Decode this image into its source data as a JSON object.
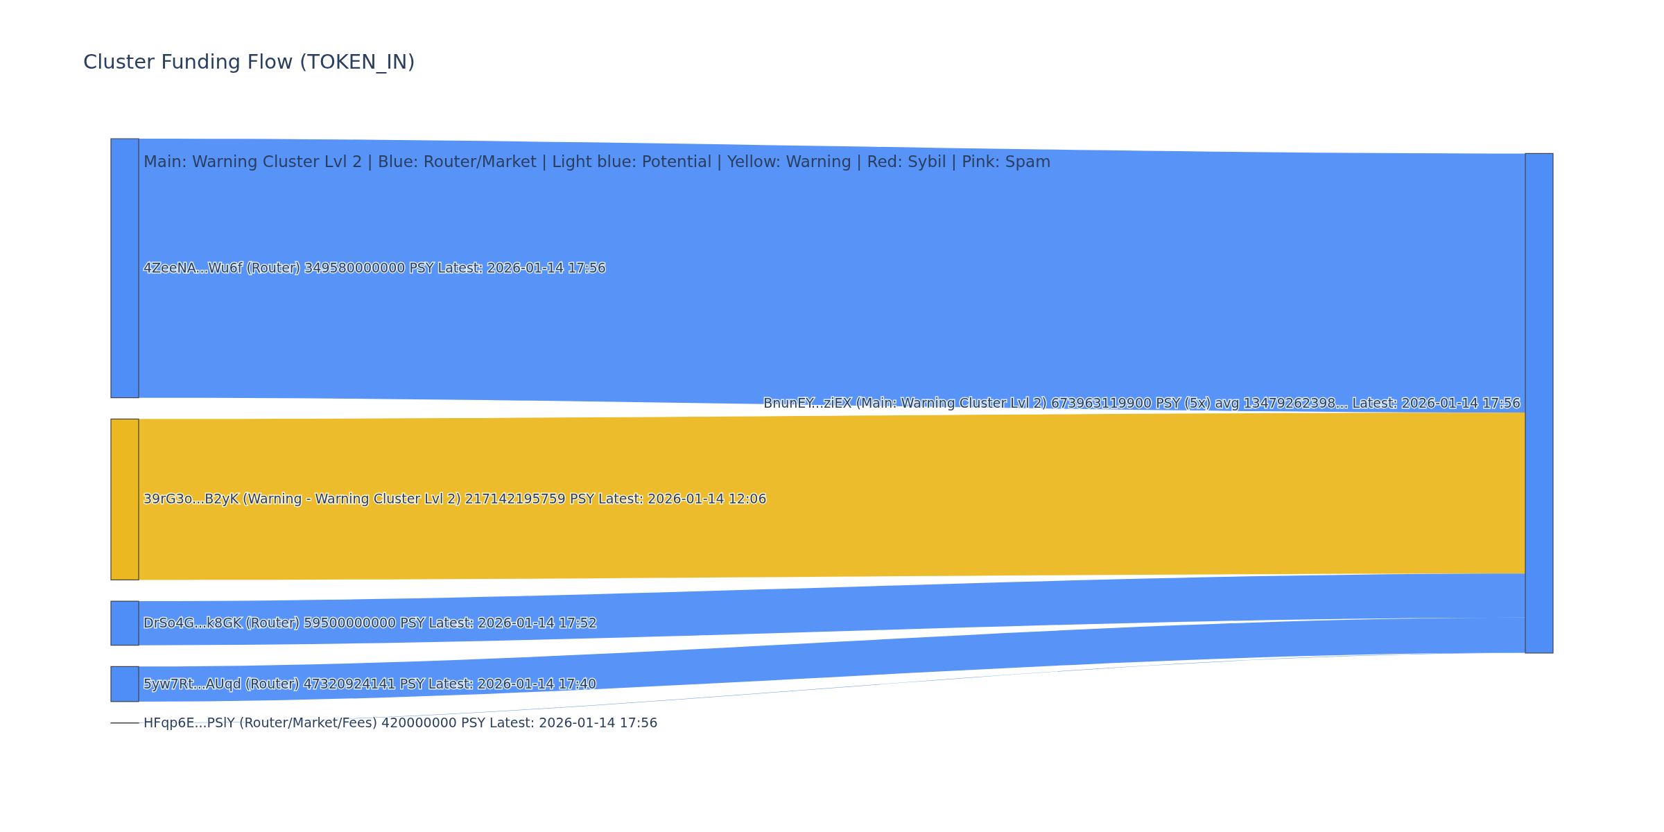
{
  "chart_data": {
    "type": "other",
    "title": "Cluster Funding Flow (TOKEN_IN)",
    "categories": [
      "4ZeeNA...Wu6f (Router)",
      "39rG3o...B2yK (Warning - Warning Cluster Lvl 2)",
      "DrSo4G...k8GK (Router)",
      "5yw7Rt...AUqd (Router)",
      "HFqp6E...PSlY (Router/Market/Fees)"
    ],
    "values": [
      349580000000,
      217142195759,
      59500000000,
      47320924141,
      420000000
    ],
    "value_labels": [
      "349580000000 PSY Latest: 2026-01-14 17:56",
      "217142195759 PSY Latest: 2026-01-14 12:06",
      "59500000000 PSY Latest: 2026-01-14 17:52",
      "47320924141 PSY Latest: 2026-01-14 17:40",
      "420000000 PSY Latest: 2026-01-14 17:56"
    ],
    "colors": [
      "#4f8ef7",
      "#ecb821",
      "#4f8ef7",
      "#4f8ef7",
      "#4f8ef7"
    ],
    "annotations": [
      "BnunEY...ziEX (Main: Warning Cluster Lvl 2) 673963119900 PSY (5x) avg 13479262398... Latest: 2026-01-14 17:56",
      "Main: Warning Cluster Lvl 2  |  Blue: Router/Market | Light blue: Potential | Yellow: Warning | Red: Sybil | Pink: Spam"
    ]
  }
}
